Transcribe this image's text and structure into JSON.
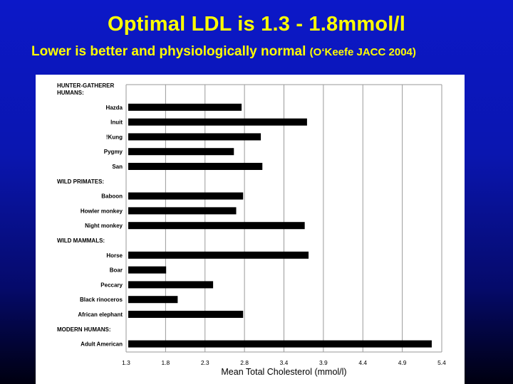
{
  "slide": {
    "title": "Optimal LDL is 1.3 - 1.8mmol/l",
    "subtitle": "Lower is better and physiologically normal",
    "citation": "(O‘Keefe JACC 2004)"
  },
  "chart_data": {
    "type": "bar",
    "orientation": "horizontal",
    "xlabel": "Mean Total Cholesterol (mmol/l)",
    "xlim": [
      1.3,
      5.4
    ],
    "ticks": [
      "1.3",
      "1.8",
      "2.3",
      "2.8",
      "3.4",
      "3.9",
      "4.4",
      "4.9",
      "5.4"
    ],
    "grid": true,
    "bar_color": "#000000",
    "groups": [
      {
        "name": "HUNTER-GATHERER HUMANS:",
        "items": [
          {
            "label": "Hazda",
            "value": 2.8
          },
          {
            "label": "Inuit",
            "value": 3.65
          },
          {
            "label": "!Kung",
            "value": 3.05
          },
          {
            "label": "Pygmy",
            "value": 2.7
          },
          {
            "label": "San",
            "value": 3.07
          }
        ]
      },
      {
        "name": "WILD PRIMATES:",
        "items": [
          {
            "label": "Baboon",
            "value": 2.82
          },
          {
            "label": "Howler monkey",
            "value": 2.73
          },
          {
            "label": "Night monkey",
            "value": 3.62
          }
        ]
      },
      {
        "name": "WILD MAMMALS:",
        "items": [
          {
            "label": "Horse",
            "value": 3.67
          },
          {
            "label": "Boar",
            "value": 1.82
          },
          {
            "label": "Peccary",
            "value": 2.43
          },
          {
            "label": "Black rinoceros",
            "value": 1.97
          },
          {
            "label": "African elephant",
            "value": 2.82
          }
        ]
      },
      {
        "name": "MODERN HUMANS:",
        "items": [
          {
            "label": "Adult American",
            "value": 5.27
          }
        ]
      }
    ]
  }
}
